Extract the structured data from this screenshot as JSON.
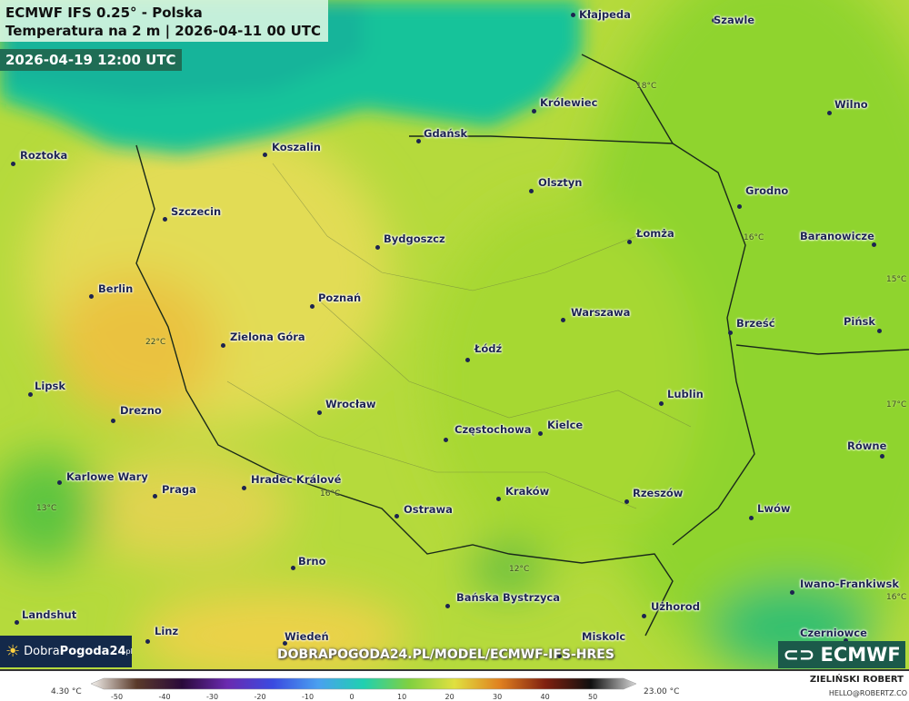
{
  "header": {
    "title": "ECMWF IFS 0.25° - Polska",
    "subtitle": "Temperatura na 2 m | 2026-04-11 00 UTC",
    "valid_time": "2026-04-19 12:00 UTC"
  },
  "cities": [
    "Kłajpeda",
    "Szawle",
    "Królewiec",
    "Wilno",
    "Gdańsk",
    "Koszalin",
    "Roztoka",
    "Olsztyn",
    "Grodno",
    "Szczecin",
    "Bydgoszcz",
    "Łomża",
    "Baranowicze",
    "Berlin",
    "Poznań",
    "Warszawa",
    "Brześć",
    "Pińsk",
    "Zielona Góra",
    "Łódź",
    "Lipsk",
    "Lublin",
    "Wrocław",
    "Drezno",
    "Częstochowa",
    "Kielce",
    "Równe",
    "Karlowe Wary",
    "Hradec Králové",
    "Praga",
    "Kraków",
    "Rzeszów",
    "Ostrawa",
    "Lwów",
    "Brno",
    "Iwano-Frankiwsk",
    "Bańska Bystrzyca",
    "Użhorod",
    "Landshut",
    "Linz",
    "Wiedeń",
    "Czerniowce",
    "Miskolc"
  ],
  "temp_labels": [
    "18°C",
    "16°C",
    "15°C",
    "22°C",
    "17°C",
    "16°C",
    "13°C",
    "12°C",
    "16°C"
  ],
  "branding": {
    "logo_text_light": "Dobra",
    "logo_text_bold": "Pogoda24",
    "logo_suffix": "pl",
    "url": "DOBRAPOGODA24.PL/MODEL/ECMWF-IFS-HRES",
    "ecmwf": "ECMWF",
    "author": "ZIELIŃSKI ROBERT",
    "email": "HELLO@ROBERTZ.CO"
  },
  "legend": {
    "min_label": "4.30 °C",
    "max_label": "23.00 °C",
    "ticks": [
      "-50",
      "-40",
      "-30",
      "-20",
      "-10",
      "0",
      "10",
      "20",
      "30",
      "40",
      "50"
    ],
    "colors": [
      "#f4f2ee",
      "#5a3a2a",
      "#2a0a3a",
      "#6a2ab0",
      "#3a4ae0",
      "#4aa0f0",
      "#20d0b0",
      "#80d040",
      "#e0e040",
      "#e08020",
      "#802010",
      "#101010",
      "#d8d8d8"
    ]
  },
  "colors": {
    "sea": "#17c39a",
    "land_warm": "#e6d84a",
    "land_mid": "#b9de3a",
    "land_green": "#8fd42e"
  }
}
